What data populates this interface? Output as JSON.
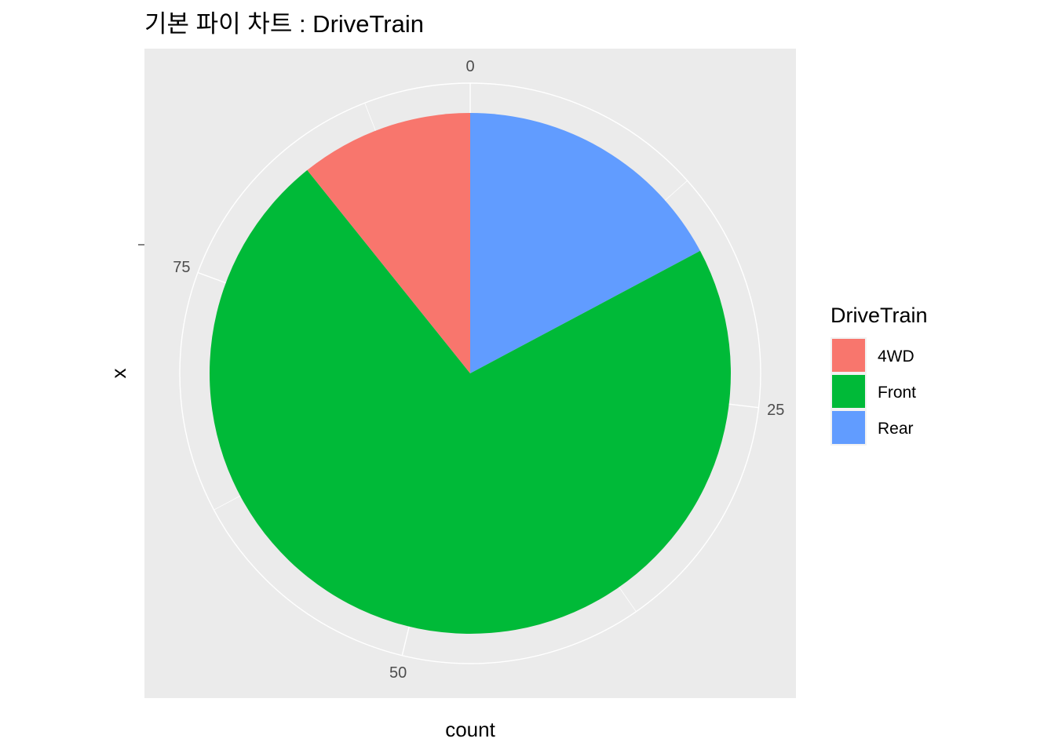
{
  "chart_data": {
    "type": "pie",
    "title": "기본 파이 차트 : DriveTrain",
    "xlabel": "count",
    "ylabel": "x",
    "total": 93,
    "theta_ticks": [
      0,
      25,
      50,
      75
    ],
    "slices": [
      {
        "label": "Rear",
        "value": 16,
        "color": "#619CFF"
      },
      {
        "label": "Front",
        "value": 67,
        "color": "#00BA38"
      },
      {
        "label": "4WD",
        "value": 10,
        "color": "#F8766D"
      }
    ],
    "legend": {
      "title": "DriveTrain",
      "position": "right",
      "entries": [
        {
          "label": "4WD",
          "color": "#F8766D"
        },
        {
          "label": "Front",
          "color": "#00BA38"
        },
        {
          "label": "Rear",
          "color": "#619CFF"
        }
      ]
    },
    "panel_background": "#EBEBEB",
    "grid_color": "#FFFFFF"
  }
}
